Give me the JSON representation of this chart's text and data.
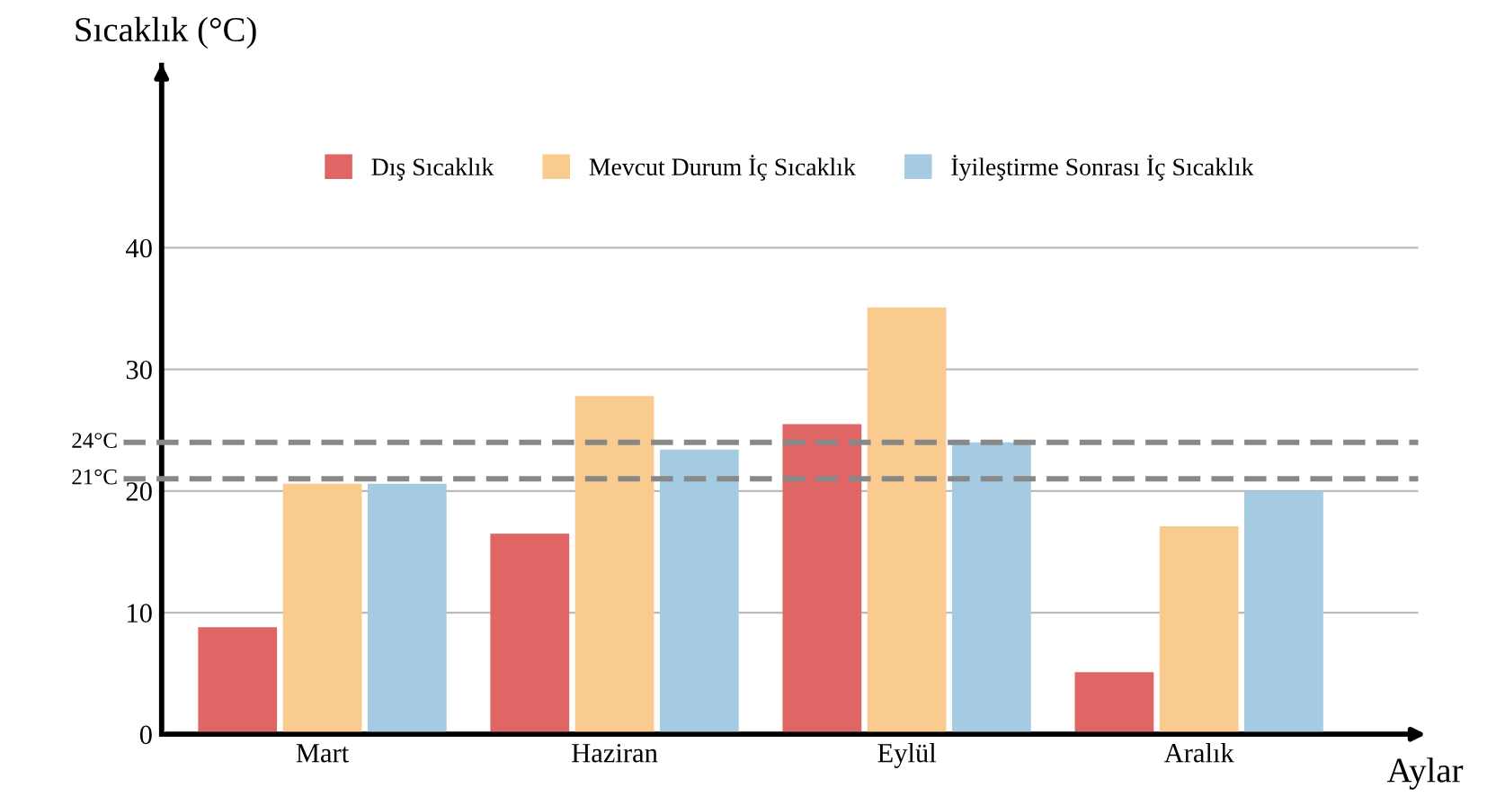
{
  "chart_data": {
    "type": "bar",
    "xlabel": "Aylar",
    "ylabel": "Sıcaklık (°C)",
    "categories": [
      "Mart",
      "Haziran",
      "Eylül",
      "Aralık"
    ],
    "series": [
      {
        "name": "Dış Sıcaklık",
        "color": "#e06666",
        "values": [
          8.8,
          16.5,
          25.5,
          5.1
        ]
      },
      {
        "name": "Mevcut Durum İç Sıcaklık",
        "color": "#f9cb8f",
        "values": [
          20.6,
          27.8,
          35.1,
          17.1
        ]
      },
      {
        "name": "İyileştirme Sonrası İç Sıcaklık",
        "color": "#a4cbe2",
        "values": [
          20.6,
          23.4,
          24.0,
          20.0
        ]
      }
    ],
    "ylim": [
      0,
      55
    ],
    "yticks": [
      0,
      10,
      20,
      30,
      40
    ],
    "grid": "y",
    "legend": "top",
    "ref_lines": [
      {
        "axis": "y",
        "value": 24,
        "label": "24°C",
        "color": "#888888",
        "line_style": "dashed"
      },
      {
        "axis": "y",
        "value": 21,
        "label": "21°C",
        "color": "#888888",
        "line_style": "dashed"
      }
    ]
  }
}
